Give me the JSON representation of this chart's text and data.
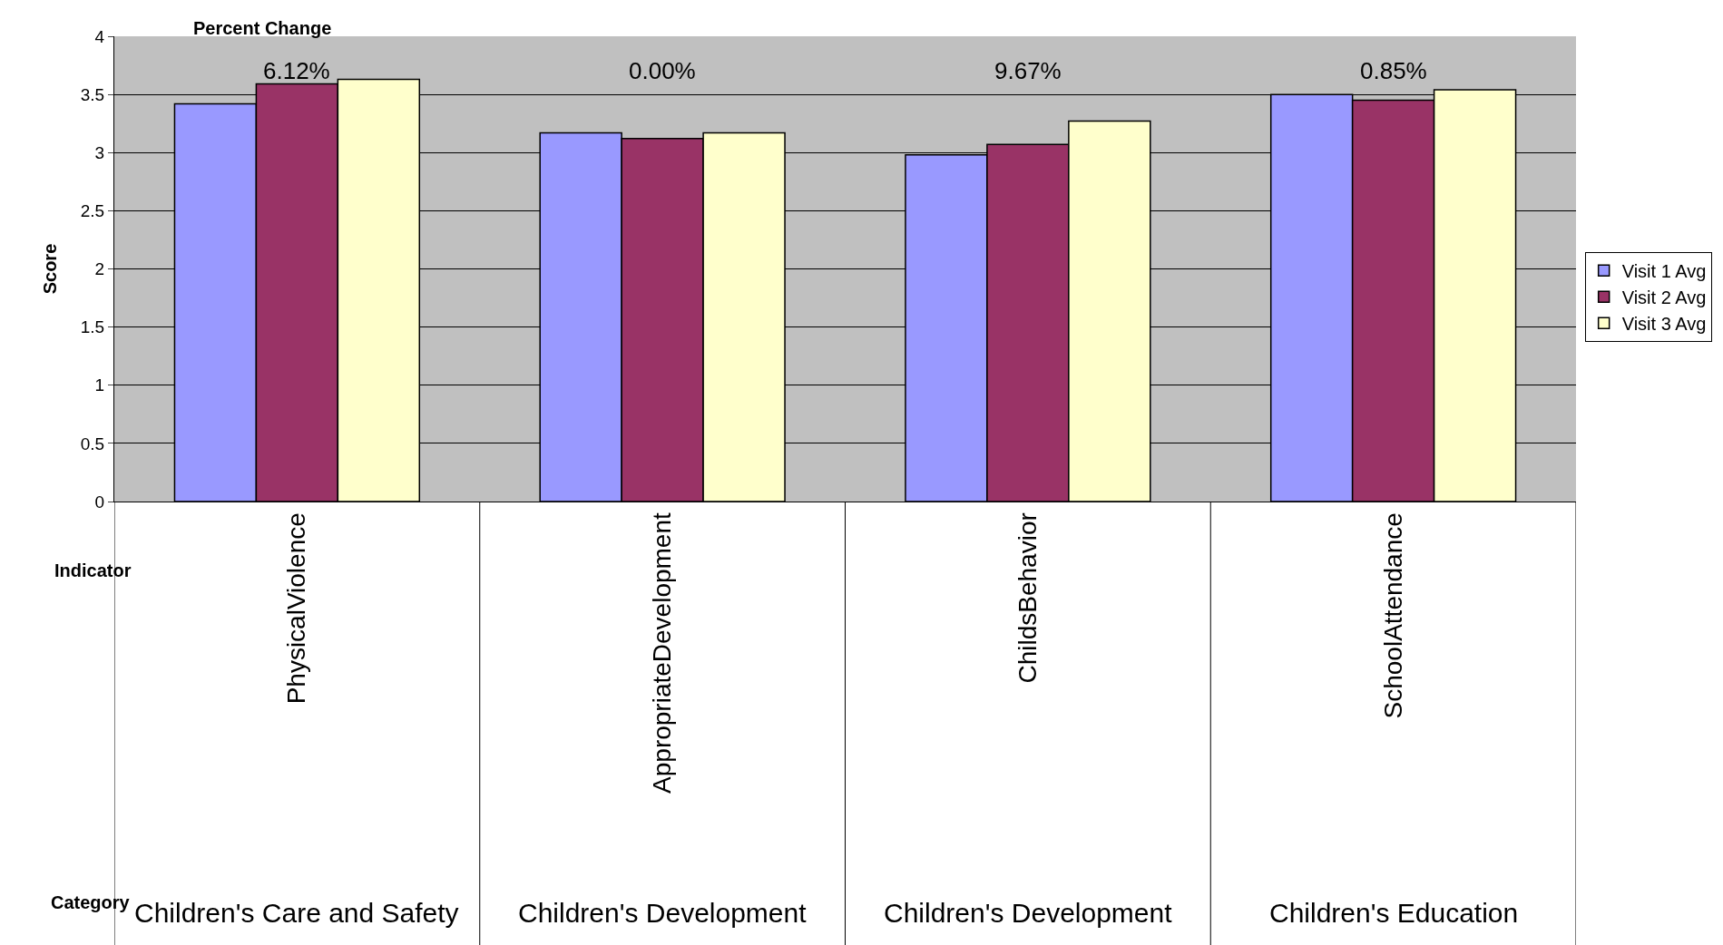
{
  "chart_data": {
    "type": "bar",
    "ylabel": "Score",
    "xlabel": "Indicator",
    "categories": [
      "PhysicalViolence",
      "AppropriateDevelopment",
      "ChildsBehavior",
      "SchoolAttendance"
    ],
    "series": [
      {
        "name": "Visit 1 Avg",
        "color": "#9999ff",
        "values": [
          3.42,
          3.17,
          2.98,
          3.5
        ]
      },
      {
        "name": "Visit 2 Avg",
        "color": "#993366",
        "values": [
          3.59,
          3.12,
          3.07,
          3.45
        ]
      },
      {
        "name": "Visit 3 Avg",
        "color": "#ffffcc",
        "values": [
          3.63,
          3.17,
          3.27,
          3.54
        ]
      }
    ],
    "ylim": [
      0,
      4
    ],
    "yticks": [
      0,
      0.5,
      1,
      1.5,
      2,
      2.5,
      3,
      3.5,
      4
    ],
    "grid": "y",
    "legend": "right",
    "annotations": [
      "Percent Change",
      "Category",
      "6.12%",
      "0.00%",
      "9.67%",
      "0.85%",
      "Children's Care and Safety",
      "Children's Development",
      "Children's Development",
      "Children's Education"
    ]
  }
}
